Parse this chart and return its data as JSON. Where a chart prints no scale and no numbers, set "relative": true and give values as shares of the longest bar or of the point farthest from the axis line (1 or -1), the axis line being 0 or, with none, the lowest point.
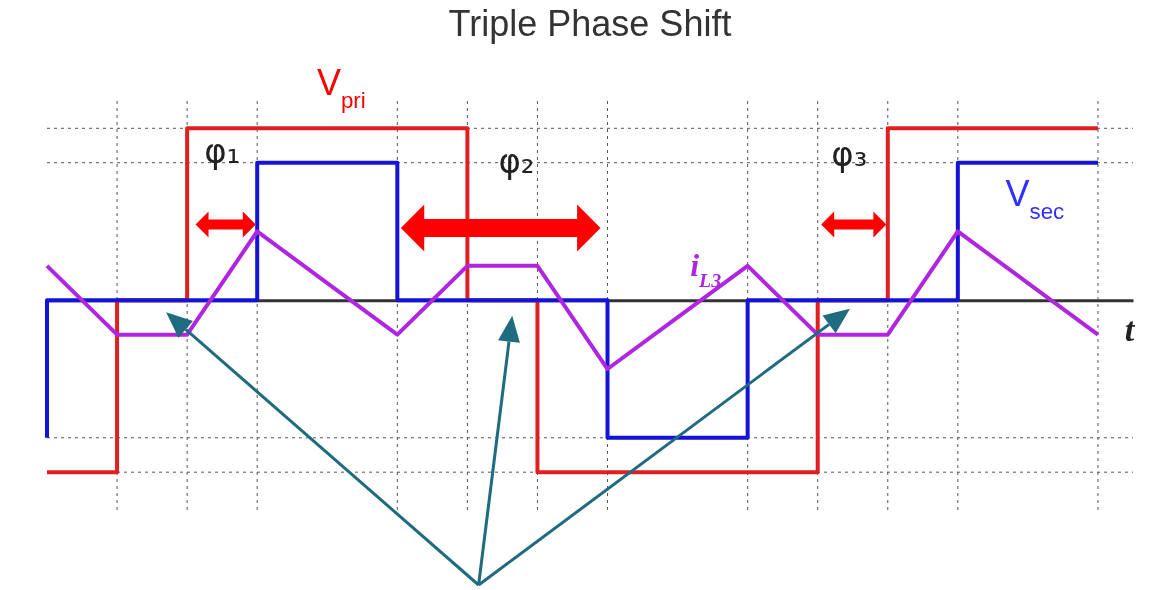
{
  "chart_data": {
    "type": "line",
    "title": "Triple Phase Shift",
    "xlabel": "t",
    "relative": true,
    "grid": true,
    "legend": false,
    "marker": "none",
    "line_style": "solid",
    "categories": [
      null,
      null,
      null,
      null,
      null,
      null,
      null,
      null,
      null,
      null,
      null,
      null,
      null,
      null,
      null,
      null
    ],
    "series": [
      {
        "name": "V$_{pri}$",
        "type": "step",
        "color": "#e02020",
        "values": [
          -1,
          -1,
          0,
          1,
          1,
          1,
          1,
          0,
          -1,
          -1,
          -1,
          -1,
          0,
          1,
          1,
          1
        ]
      },
      {
        "name": "V$_{sec}$",
        "type": "step",
        "color": "#1414d8",
        "values": [
          -0.8,
          0,
          0,
          0,
          0.8,
          0.8,
          0,
          0,
          0,
          -0.8,
          -0.8,
          0,
          0,
          0,
          0.8,
          0.8
        ]
      },
      {
        "name": "i$_{L3}$",
        "type": "line",
        "color": "#b026e0",
        "values": [
          0.2,
          -0.2,
          -0.2,
          0.4,
          0.1,
          -0.2,
          0.2,
          0.2,
          -0.4,
          -0.1,
          0.2,
          -0.2,
          -0.2,
          0.4,
          0.1,
          -0.2
        ]
      }
    ],
    "annotations": [
      "φ₁",
      "φ₂",
      "φ₃"
    ]
  }
}
